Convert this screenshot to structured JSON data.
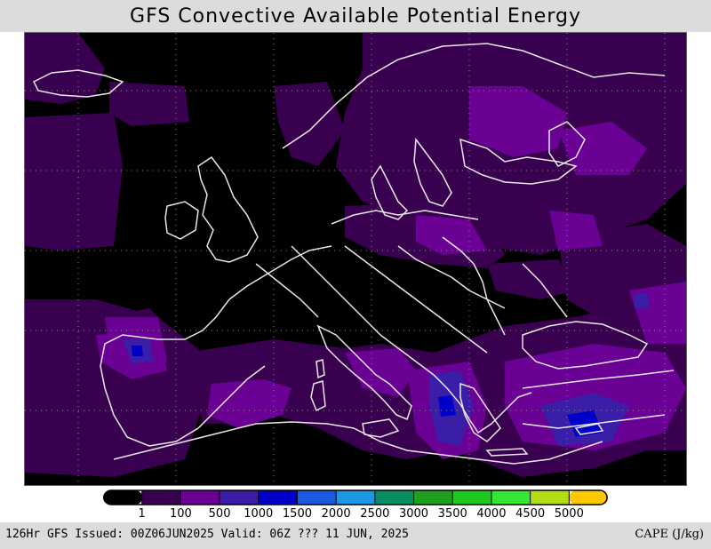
{
  "title": "GFS Convective Available Potential Energy",
  "footer": {
    "issued": "126Hr GFS Issued: 00Z06JUN2025 Valid: 06Z ??? 11 JUN, 2025",
    "unit_label": "CAPE (J/kg)"
  },
  "legend": {
    "colors": [
      "#000000",
      "#3a0050",
      "#6a0094",
      "#3a1ea8",
      "#0000c8",
      "#1e5ae0",
      "#1e96e6",
      "#0a8c64",
      "#1ea01e",
      "#1ec81e",
      "#32e632",
      "#b4dc14",
      "#ffc800"
    ],
    "labels": [
      "1",
      "100",
      "500",
      "1000",
      "1500",
      "2000",
      "2500",
      "3000",
      "3500",
      "4000",
      "4500",
      "5000"
    ]
  },
  "map": {
    "region": "Europe",
    "field": "CAPE",
    "coastline_color": "#e8e8e8",
    "grid_color": "#888888"
  }
}
